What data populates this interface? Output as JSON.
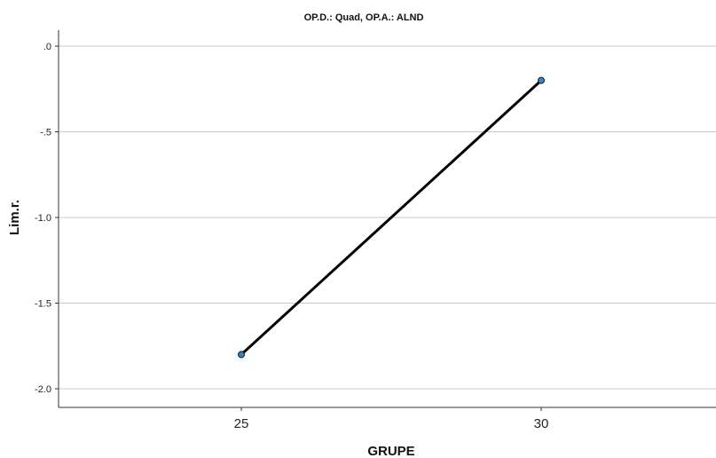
{
  "chart_data": {
    "type": "line",
    "title": "OP.D.: Quad, OP.A.: ALND",
    "xlabel": "GRUPE",
    "ylabel": "Lim.r.",
    "categories": [
      "25",
      "30"
    ],
    "series": [
      {
        "values": [
          -1.8,
          -0.2
        ]
      }
    ],
    "y_ticks": [
      ".0",
      "-.5",
      "-1.0",
      "-1.5",
      "-2.0"
    ],
    "y_tick_values": [
      0,
      -0.5,
      -1.0,
      -1.5,
      -2.0
    ],
    "ylim": [
      -2.1,
      0.05
    ],
    "grid": true,
    "line_color": "#000000",
    "marker_color": "#2e86c9"
  }
}
